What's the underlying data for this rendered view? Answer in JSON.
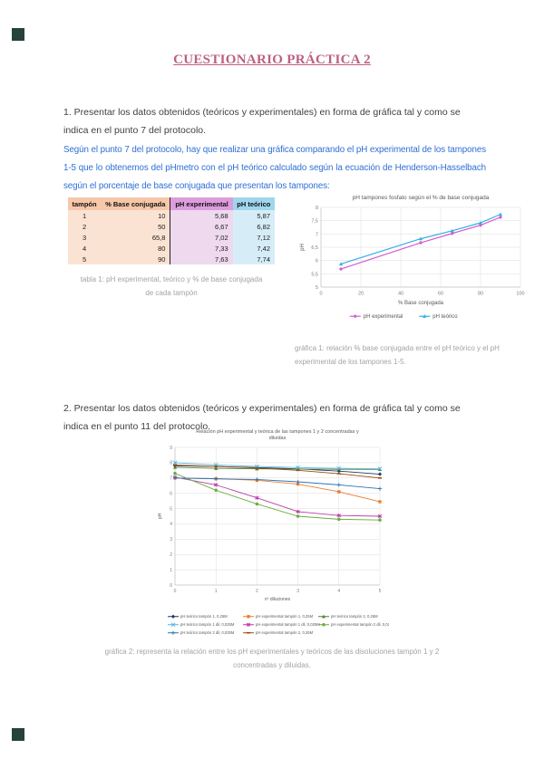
{
  "page": {
    "title": "CUESTIONARIO PRÁCTICA 2"
  },
  "colors": {
    "title_pink": "#bd5f82",
    "body_text": "#3f3f3f",
    "answer_blue": "#2e6fd4",
    "caption_gray": "#a3a3a3",
    "corner_mark": "#25423c"
  },
  "questions": {
    "q1": "1. Presentar los datos obtenidos (teóricos y experimentales) en forma de gráfica tal y como se indica en el punto 7 del protocolo.",
    "q1_answer": "Según el punto 7 del protocolo, hay que realizar una gráfica comparando el pH experimental de los tampones 1-5 que lo obtenemos del pHmetro con el pH teórico calculado según la ecuación de Henderson-Hasselbach según el porcentaje de base conjugada que presentan los tampones:",
    "q2": "2. Presentar los datos obtenidos (teóricos y experimentales) en forma de gráfica tal y como se indica en el punto 11 del protocolo."
  },
  "table": {
    "headers": [
      "tampón",
      "% Base conjugada",
      "pH experimental",
      "pH teórico"
    ],
    "rows": [
      [
        "1",
        "10",
        "5,68",
        "5,87"
      ],
      [
        "2",
        "50",
        "6,67",
        "6,82"
      ],
      [
        "3",
        "65,8",
        "7,02",
        "7,12"
      ],
      [
        "4",
        "80",
        "7,33",
        "7,42"
      ],
      [
        "5",
        "90",
        "7,63",
        "7,74"
      ]
    ],
    "caption": "tabla 1: pH experimental, teórico y % de base conjugada de cada tampón"
  },
  "captions": {
    "chart1": "gráfica 1: relación % base conjugada entre el pH teórico y el pH experimental de los tampones 1-5.",
    "chart2": "gráfica 2: representa la relación entre los pH experimentales y teóricos de las disoluciones tampón 1 y 2 concentradas y diluidas."
  },
  "chart_data": [
    {
      "type": "line",
      "title": "pH tampones fosfato según el % de base conjugada",
      "xlabel": "% Base conjugada",
      "ylabel": "pH",
      "x": [
        10,
        50,
        65.8,
        80,
        90
      ],
      "series": [
        {
          "name": "pH experimental",
          "color": "#d65bd0",
          "marker": "diamond",
          "values": [
            5.68,
            6.67,
            7.02,
            7.33,
            7.63
          ]
        },
        {
          "name": "pH teórico",
          "color": "#33b1e4",
          "marker": "triangle",
          "values": [
            5.87,
            6.82,
            7.12,
            7.42,
            7.74
          ]
        }
      ],
      "xlim": [
        0,
        100
      ],
      "ylim": [
        5,
        8
      ],
      "xticks": [
        0,
        20,
        40,
        60,
        80,
        100
      ],
      "yticks": [
        5,
        5.5,
        6,
        6.5,
        7,
        7.5,
        8
      ],
      "grid": true,
      "legend_position": "bottom"
    },
    {
      "type": "line",
      "title": "Relación pH experimental y teórica de las tampones 1 y 2 concentradas y diluidas",
      "xlabel": "nº diluciones",
      "ylabel": "pH",
      "x": [
        0,
        1,
        2,
        3,
        4,
        5
      ],
      "series": [
        {
          "name": "pH teórico tampón 1, 0,25M",
          "color": "#1F3864",
          "marker": "diamond",
          "values": [
            7.8,
            7.75,
            7.68,
            7.6,
            7.45,
            7.25
          ]
        },
        {
          "name": "pH experimental tampón 1, 0,25M",
          "color": "#ED7D31",
          "marker": "square",
          "values": [
            7.0,
            6.95,
            6.85,
            6.6,
            6.1,
            5.45
          ]
        },
        {
          "name": "pH teórico tampón 2, 0,25M",
          "color": "#548235",
          "marker": "triangle",
          "values": [
            7.7,
            7.63,
            7.6,
            7.58,
            7.57,
            7.56
          ]
        },
        {
          "name": "pH teórico tampón 1 dil, 0,025M",
          "color": "#56B4E2",
          "marker": "x",
          "values": [
            8.0,
            7.85,
            7.75,
            7.68,
            7.63,
            7.6
          ]
        },
        {
          "name": "pH experimental tampón 1 dil, 0,025M",
          "color": "#BB3DA8",
          "marker": "asterisk",
          "values": [
            7.05,
            6.55,
            5.7,
            4.8,
            4.55,
            4.5
          ]
        },
        {
          "name": "pH experimental tampón 2 dil, 0,025M",
          "color": "#6AAE3F",
          "marker": "circle",
          "values": [
            7.3,
            6.2,
            5.3,
            4.5,
            4.3,
            4.25
          ]
        },
        {
          "name": "pH teórico tampón 2 dil, 0,025M",
          "color": "#2E75B6",
          "marker": "plus",
          "values": [
            7.0,
            6.95,
            6.9,
            6.75,
            6.55,
            6.3
          ]
        },
        {
          "name": "pH experimental tampón 2, 0,25M",
          "color": "#9C4A0F",
          "marker": "dash",
          "values": [
            7.85,
            7.75,
            7.65,
            7.5,
            7.28,
            7.0
          ]
        }
      ],
      "xlim": [
        0,
        5
      ],
      "ylim": [
        0,
        9
      ],
      "xticks": [
        0,
        1,
        2,
        3,
        4,
        5
      ],
      "yticks": [
        0,
        1,
        2,
        3,
        4,
        5,
        6,
        7,
        8,
        9
      ],
      "grid": true,
      "legend_position": "bottom"
    }
  ]
}
